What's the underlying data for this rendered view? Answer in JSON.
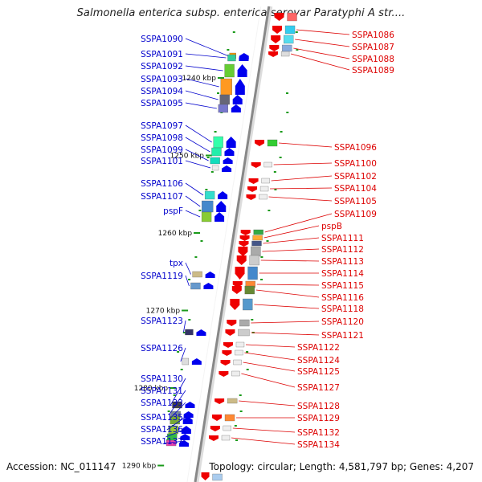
{
  "title": "Salmonella enterica subsp. enterica serovar Paratyphi A str....",
  "footer": {
    "accession": "Accession: NC_011147",
    "stats": "Topology: circular; Length: 4,581,797 bp; Genes: 4,207"
  },
  "colors": {
    "left_label": "#0000cc",
    "right_label": "#dd0000",
    "forward_arrow": "#0000ee",
    "reverse_arrow": "#ee0000",
    "tick": "#1a9a1a",
    "backbone": "#888888"
  },
  "scale": {
    "unit": "kbp",
    "ticks": [
      {
        "value": 1240,
        "label": "1240 kbp"
      },
      {
        "value": 1250,
        "label": "1250 kbp"
      },
      {
        "value": 1260,
        "label": "1260 kbp"
      },
      {
        "value": 1270,
        "label": "1270 kbp"
      },
      {
        "value": 1280,
        "label": "1280 kbp"
      },
      {
        "value": 1290,
        "label": "1290 kbp"
      }
    ]
  },
  "forward_genes": [
    "SSPA1090",
    "SSPA1091",
    "SSPA1092",
    "SSPA1093",
    "SSPA1094",
    "SSPA1095",
    "SSPA1097",
    "SSPA1098",
    "SSPA1099",
    "SSPA1101",
    "SSPA1106",
    "SSPA1107",
    "pspF",
    "tpx",
    "SSPA1119",
    "SSPA1123",
    "SSPA1126",
    "SSPA1130",
    "SSPA1131",
    "SSPA1133",
    "SSPA1135",
    "SSPA1136",
    "SSPA1137"
  ],
  "reverse_genes": [
    "SSPA1086",
    "SSPA1087",
    "SSPA1088",
    "SSPA1089",
    "SSPA1096",
    "SSPA1100",
    "SSPA1102",
    "SSPA1104",
    "SSPA1105",
    "SSPA1109",
    "pspB",
    "SSPA1111",
    "SSPA1112",
    "SSPA1113",
    "SSPA1114",
    "SSPA1115",
    "SSPA1116",
    "SSPA1118",
    "SSPA1120",
    "SSPA1121",
    "SSPA1122",
    "SSPA1124",
    "SSPA1125",
    "SSPA1127",
    "SSPA1128",
    "SSPA1129",
    "SSPA1132",
    "SSPA1134"
  ]
}
